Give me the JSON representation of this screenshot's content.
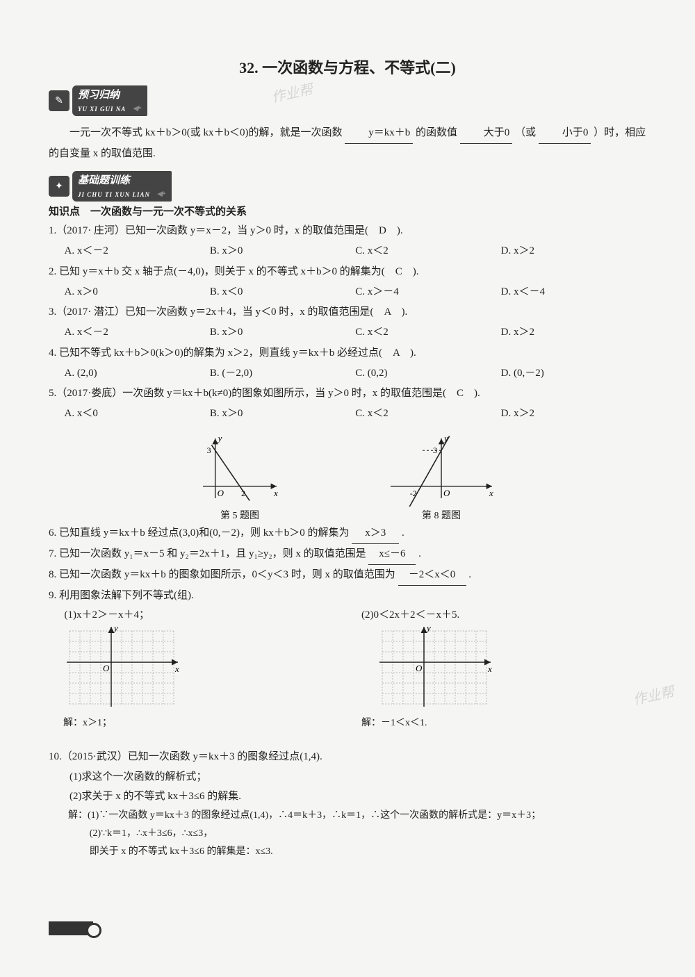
{
  "title": "32. 一次函数与方程、不等式(二)",
  "watermark": "作业帮",
  "banners": {
    "preview": {
      "label": "预习归纳",
      "sub": "YU XI GUI NA",
      "icon": "✎"
    },
    "basic": {
      "label": "基础题训练",
      "sub": "JI CHU TI XUN LIAN",
      "icon": "✦"
    }
  },
  "intro": {
    "pre": "一元一次不等式 kx＋b＞0(或 kx＋b＜0)的解，就是一次函数",
    "fill1": "y＝kx＋b",
    "mid1": "的函数值",
    "fill2": "大于0",
    "mid2": "（或",
    "fill3": "小于0",
    "post": "）时，相应的自变量 x 的取值范围."
  },
  "knowledge": "知识点　一次函数与一元一次不等式的关系",
  "q1": {
    "text": "1.（2017· 庄河）已知一次函数 y＝x－2，当 y＞0 时，x 的取值范围是(　D　).",
    "opts": [
      "A. x＜－2",
      "B. x＞0",
      "C. x＜2",
      "D. x＞2"
    ]
  },
  "q2": {
    "text": "2. 已知 y＝x＋b 交 x 轴于点(－4,0)，则关于 x 的不等式 x＋b＞0 的解集为(　C　).",
    "opts": [
      "A. x＞0",
      "B. x＜0",
      "C. x＞－4",
      "D. x＜－4"
    ]
  },
  "q3": {
    "text": "3.（2017· 潜江）已知一次函数 y＝2x＋4，当 y＜0 时，x 的取值范围是(　A　).",
    "opts": [
      "A. x＜－2",
      "B. x＞0",
      "C. x＜2",
      "D. x＞2"
    ]
  },
  "q4": {
    "text": "4. 已知不等式 kx＋b＞0(k＞0)的解集为 x＞2，则直线 y＝kx＋b 必经过点(　A　).",
    "opts": [
      "A. (2,0)",
      "B. (－2,0)",
      "C. (0,2)",
      "D. (0,－2)"
    ]
  },
  "q5": {
    "text": "5.（2017·娄底）一次函数 y＝kx＋b(k≠0)的图象如图所示，当 y＞0 时，x 的取值范围是(　C　).",
    "opts": [
      "A. x＜0",
      "B. x＞0",
      "C. x＜2",
      "D. x＞2"
    ]
  },
  "fig5": {
    "caption": "第 5 题图",
    "yintercept": 3,
    "xintercept": 2,
    "axis_color": "#222",
    "line_color": "#222",
    "xlim": [
      -1,
      5
    ],
    "ylim": [
      -1,
      4
    ]
  },
  "fig8": {
    "caption": "第 8 题图",
    "yintercept": 3,
    "xintercept": -2,
    "axis_color": "#222",
    "line_color": "#222",
    "xlim": [
      -5,
      5
    ],
    "ylim": [
      -1,
      4
    ]
  },
  "q6": {
    "text": "6. 已知直线 y＝kx＋b 经过点(3,0)和(0,－2)，则 kx＋b＞0 的解集为",
    "ans": "x＞3",
    "tail": "."
  },
  "q7": {
    "text": "7. 已知一次函数 y₁＝x－5 和 y₂＝2x＋1，且 y₁≥y₂，则 x 的取值范围是",
    "ans": "x≤－6",
    "tail": "."
  },
  "q8": {
    "text": "8. 已知一次函数 y＝kx＋b 的图象如图所示，0＜y＜3 时，则 x 的取值范围为",
    "ans": "－2＜x＜0",
    "tail": "."
  },
  "q9": {
    "text": "9. 利用图象法解下列不等式(组).",
    "a": {
      "label": "(1)x＋2＞－x＋4；",
      "sol": "解：x＞1；"
    },
    "b": {
      "label": "(2)0＜2x＋2＜－x＋5.",
      "sol": "解：－1＜x＜1."
    }
  },
  "grid": {
    "cols": 10,
    "rows": 7,
    "cell": 15,
    "origin_col": 4,
    "origin_row": 3,
    "grid_color": "#bbb",
    "dash": "2,2",
    "axis_color": "#222"
  },
  "q10": {
    "head": "10.（2015·武汉）已知一次函数 y＝kx＋3 的图象经过点(1,4).",
    "p1": "(1)求这个一次函数的解析式；",
    "p2": "(2)求关于 x 的不等式 kx＋3≤6 的解集.",
    "s1": "解：(1)∵一次函数 y＝kx＋3 的图象经过点(1,4)，∴4＝k＋3，∴k＝1，∴这个一次函数的解析式是：y＝x＋3；",
    "s2": "(2)∵k＝1，∴x＋3≤6，∴x≤3，",
    "s3": "即关于 x 的不等式 kx＋3≤6 的解集是：x≤3."
  },
  "colors": {
    "bg": "#f5f5f3",
    "text": "#222",
    "banner_bg": "#444",
    "fill_underline": "#333"
  }
}
